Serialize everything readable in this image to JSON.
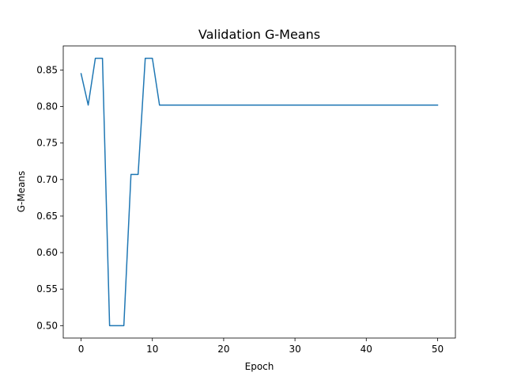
{
  "chart_data": {
    "type": "line",
    "title": "Validation G-Means",
    "xlabel": "Epoch",
    "ylabel": "G-Means",
    "xlim": [
      -2.5,
      52.5
    ],
    "ylim": [
      0.483,
      0.883
    ],
    "x_ticks": [
      0,
      10,
      20,
      30,
      40,
      50
    ],
    "y_ticks": [
      0.5,
      0.55,
      0.6,
      0.65,
      0.7,
      0.75,
      0.8,
      0.85
    ],
    "y_tick_labels": [
      "0.50",
      "0.55",
      "0.60",
      "0.65",
      "0.70",
      "0.75",
      "0.80",
      "0.85"
    ],
    "grid": false,
    "series": [
      {
        "color": "#1f77b4",
        "x": [
          0,
          1,
          2,
          3,
          4,
          5,
          6,
          7,
          8,
          9,
          10,
          11,
          12,
          13,
          14,
          15,
          16,
          17,
          18,
          19,
          20,
          21,
          22,
          23,
          24,
          25,
          26,
          27,
          28,
          29,
          30,
          31,
          32,
          33,
          34,
          35,
          36,
          37,
          38,
          39,
          40,
          41,
          42,
          43,
          44,
          45,
          46,
          47,
          48,
          49,
          50
        ],
        "y": [
          0.845,
          0.802,
          0.866,
          0.866,
          0.5,
          0.5,
          0.5,
          0.707,
          0.707,
          0.866,
          0.866,
          0.802,
          0.802,
          0.802,
          0.802,
          0.802,
          0.802,
          0.802,
          0.802,
          0.802,
          0.802,
          0.802,
          0.802,
          0.802,
          0.802,
          0.802,
          0.802,
          0.802,
          0.802,
          0.802,
          0.802,
          0.802,
          0.802,
          0.802,
          0.802,
          0.802,
          0.802,
          0.802,
          0.802,
          0.802,
          0.802,
          0.802,
          0.802,
          0.802,
          0.802,
          0.802,
          0.802,
          0.802,
          0.802,
          0.802,
          0.802
        ]
      }
    ]
  }
}
